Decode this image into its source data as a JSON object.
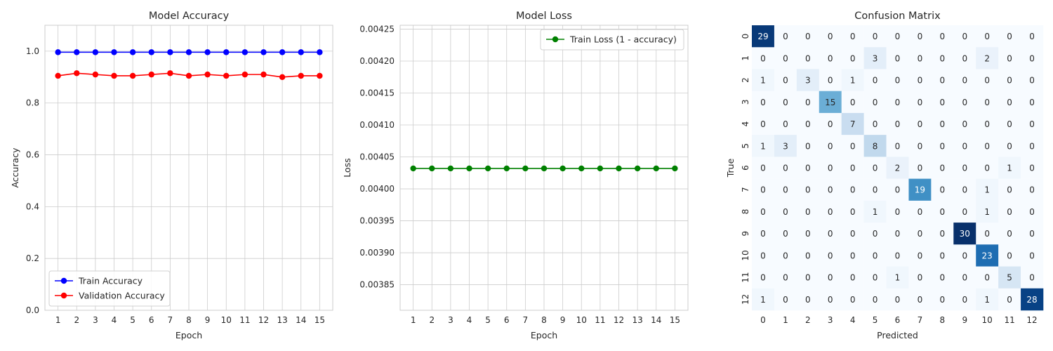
{
  "chart_data": [
    {
      "type": "line",
      "title": "Model Accuracy",
      "xlabel": "Epoch",
      "ylabel": "Accuracy",
      "x": [
        1,
        2,
        3,
        4,
        5,
        6,
        7,
        8,
        9,
        10,
        11,
        12,
        13,
        14,
        15
      ],
      "xticks": [
        "1",
        "2",
        "3",
        "4",
        "5",
        "6",
        "7",
        "8",
        "9",
        "10",
        "11",
        "12",
        "13",
        "14",
        "15"
      ],
      "ylim": [
        0,
        1.1
      ],
      "yticks": [
        "0.0",
        "0.2",
        "0.4",
        "0.6",
        "0.8",
        "1.0"
      ],
      "grid": true,
      "legend_position": "lower-left",
      "series": [
        {
          "name": "Train Accuracy",
          "color": "#0000ff",
          "values": [
            0.996,
            0.996,
            0.996,
            0.996,
            0.996,
            0.996,
            0.996,
            0.996,
            0.996,
            0.996,
            0.996,
            0.996,
            0.996,
            0.996,
            0.996
          ]
        },
        {
          "name": "Validation Accuracy",
          "color": "#ff0000",
          "values": [
            0.905,
            0.915,
            0.91,
            0.905,
            0.905,
            0.91,
            0.915,
            0.905,
            0.91,
            0.905,
            0.91,
            0.91,
            0.9,
            0.905,
            0.905
          ]
        }
      ]
    },
    {
      "type": "line",
      "title": "Model Loss",
      "xlabel": "Epoch",
      "ylabel": "Loss",
      "x": [
        1,
        2,
        3,
        4,
        5,
        6,
        7,
        8,
        9,
        10,
        11,
        12,
        13,
        14,
        15
      ],
      "xticks": [
        "1",
        "2",
        "3",
        "4",
        "5",
        "6",
        "7",
        "8",
        "9",
        "10",
        "11",
        "12",
        "13",
        "14",
        "15"
      ],
      "ylim": [
        0.00381,
        0.004256
      ],
      "yticks": [
        "0.00385",
        "0.00390",
        "0.00395",
        "0.00400",
        "0.00405",
        "0.00410",
        "0.00415",
        "0.00420",
        "0.00425"
      ],
      "grid": true,
      "legend_position": "upper-right",
      "series": [
        {
          "name": "Train Loss (1 - accuracy)",
          "color": "#008000",
          "values": [
            0.004032,
            0.004032,
            0.004032,
            0.004032,
            0.004032,
            0.004032,
            0.004032,
            0.004032,
            0.004032,
            0.004032,
            0.004032,
            0.004032,
            0.004032,
            0.004032,
            0.004032
          ]
        }
      ]
    },
    {
      "type": "heatmap",
      "title": "Confusion Matrix",
      "xlabel": "Predicted",
      "ylabel": "True",
      "xticks": [
        "0",
        "1",
        "2",
        "3",
        "4",
        "5",
        "6",
        "7",
        "8",
        "9",
        "10",
        "11",
        "12"
      ],
      "yticks": [
        "0",
        "1",
        "2",
        "3",
        "4",
        "5",
        "6",
        "7",
        "8",
        "9",
        "10",
        "11",
        "12"
      ],
      "colormap": "Blues",
      "values": [
        [
          29,
          0,
          0,
          0,
          0,
          0,
          0,
          0,
          0,
          0,
          0,
          0,
          0
        ],
        [
          0,
          0,
          0,
          0,
          0,
          3,
          0,
          0,
          0,
          0,
          2,
          0,
          0
        ],
        [
          1,
          0,
          3,
          0,
          1,
          0,
          0,
          0,
          0,
          0,
          0,
          0,
          0
        ],
        [
          0,
          0,
          0,
          15,
          0,
          0,
          0,
          0,
          0,
          0,
          0,
          0,
          0
        ],
        [
          0,
          0,
          0,
          0,
          7,
          0,
          0,
          0,
          0,
          0,
          0,
          0,
          0
        ],
        [
          1,
          3,
          0,
          0,
          0,
          8,
          0,
          0,
          0,
          0,
          0,
          0,
          0
        ],
        [
          0,
          0,
          0,
          0,
          0,
          0,
          2,
          0,
          0,
          0,
          0,
          1,
          0
        ],
        [
          0,
          0,
          0,
          0,
          0,
          0,
          0,
          19,
          0,
          0,
          1,
          0,
          0
        ],
        [
          0,
          0,
          0,
          0,
          0,
          1,
          0,
          0,
          0,
          0,
          1,
          0,
          0
        ],
        [
          0,
          0,
          0,
          0,
          0,
          0,
          0,
          0,
          0,
          30,
          0,
          0,
          0
        ],
        [
          0,
          0,
          0,
          0,
          0,
          0,
          0,
          0,
          0,
          0,
          23,
          0,
          0
        ],
        [
          0,
          0,
          0,
          0,
          0,
          0,
          1,
          0,
          0,
          0,
          0,
          5,
          0
        ],
        [
          1,
          0,
          0,
          0,
          0,
          0,
          0,
          0,
          0,
          0,
          1,
          0,
          28
        ]
      ]
    }
  ]
}
